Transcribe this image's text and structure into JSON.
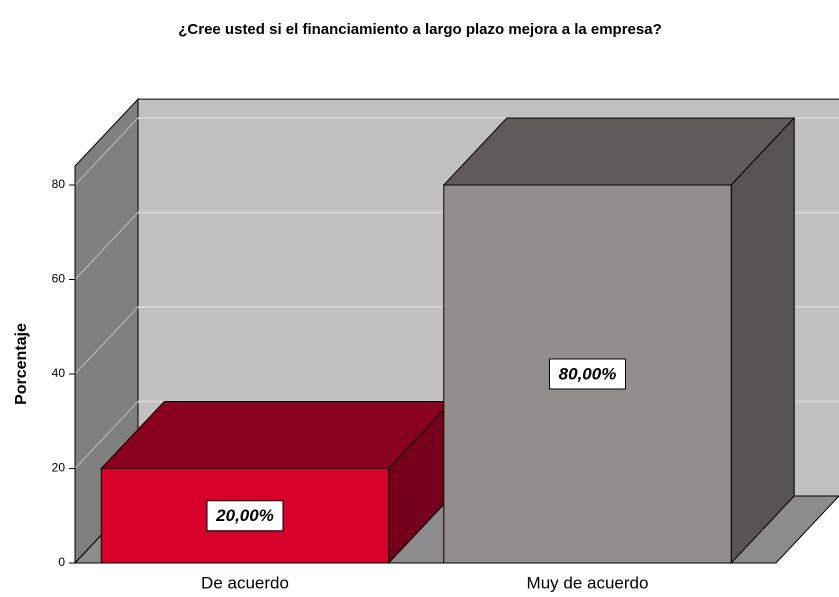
{
  "chart_data": {
    "type": "bar3d",
    "title": "¿Cree usted si el financiamiento a largo plazo mejora a la empresa?",
    "y_label": "Porcentaje",
    "categories": [
      "De acuerdo",
      "Muy de acuerdo"
    ],
    "values": [
      20,
      80
    ],
    "value_labels": [
      "20,00%",
      "80,00%"
    ],
    "colors": [
      {
        "front": "#d6002b",
        "top": "#8a0020",
        "side": "#76001b"
      },
      {
        "front": "#928e8c",
        "top": "#605b59",
        "side": "#565351"
      }
    ],
    "ylim": [
      0,
      84
    ],
    "yticks": [
      0,
      20,
      40,
      60,
      80
    ],
    "grid": true
  }
}
